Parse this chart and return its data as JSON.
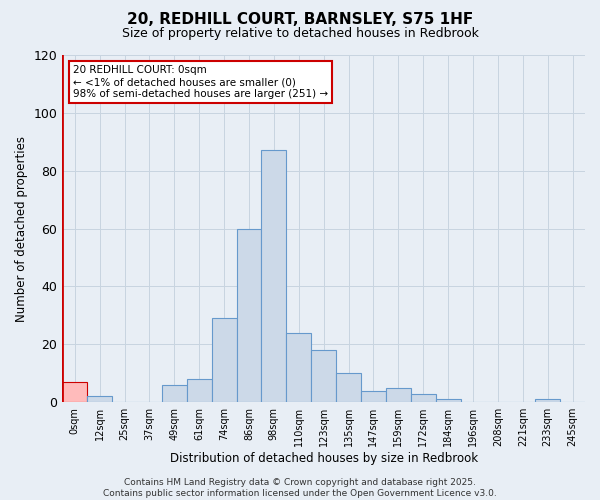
{
  "title": "20, REDHILL COURT, BARNSLEY, S75 1HF",
  "subtitle": "Size of property relative to detached houses in Redbrook",
  "xlabel": "Distribution of detached houses by size in Redbrook",
  "ylabel": "Number of detached properties",
  "bar_labels": [
    "0sqm",
    "12sqm",
    "25sqm",
    "37sqm",
    "49sqm",
    "61sqm",
    "74sqm",
    "86sqm",
    "98sqm",
    "110sqm",
    "123sqm",
    "135sqm",
    "147sqm",
    "159sqm",
    "172sqm",
    "184sqm",
    "196sqm",
    "208sqm",
    "221sqm",
    "233sqm",
    "245sqm"
  ],
  "bar_values": [
    7,
    2,
    0,
    0,
    6,
    8,
    29,
    60,
    87,
    24,
    18,
    10,
    4,
    5,
    3,
    1,
    0,
    0,
    0,
    1,
    0
  ],
  "bar_color": "#ccd9e8",
  "bar_edge_color": "#6699cc",
  "highlight_bar_index": 0,
  "highlight_bar_color": "#ffbbbb",
  "highlight_bar_edge_color": "#cc0000",
  "ylim": [
    0,
    120
  ],
  "yticks": [
    0,
    20,
    40,
    60,
    80,
    100,
    120
  ],
  "annotation_text": "20 REDHILL COURT: 0sqm\n← <1% of detached houses are smaller (0)\n98% of semi-detached houses are larger (251) →",
  "annotation_box_color": "white",
  "annotation_box_edge_color": "#cc0000",
  "footer_text": "Contains HM Land Registry data © Crown copyright and database right 2025.\nContains public sector information licensed under the Open Government Licence v3.0.",
  "background_color": "#e8eef5",
  "grid_color": "#c8d4e0",
  "plot_bg_color": "#e8eef5"
}
